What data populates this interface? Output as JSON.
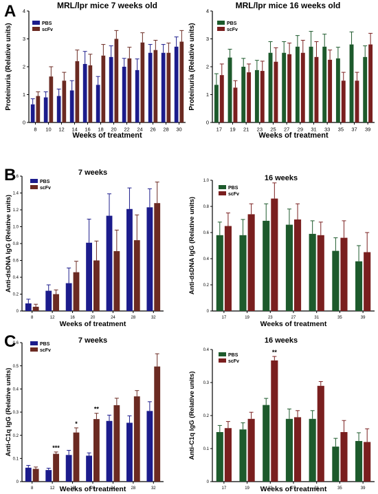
{
  "panels": [
    {
      "letter": "A"
    },
    {
      "letter": "B"
    },
    {
      "letter": "C"
    }
  ],
  "chart_data": [
    {
      "id": "A1",
      "type": "bar",
      "title": "MRL/lpr mice 7 weeks old",
      "xlabel": "Weeks of treatment",
      "ylabel": "Proteinuria (Relative units)",
      "ylim": [
        0,
        4
      ],
      "yticks": [
        "0",
        "1",
        "2",
        "3",
        "4"
      ],
      "yticks_values": [
        0,
        1,
        2,
        3,
        4
      ],
      "legend_position": "top-left",
      "categories": [
        "8",
        "10",
        "12",
        "14",
        "16",
        "18",
        "20",
        "22",
        "24",
        "26",
        "28",
        "30"
      ],
      "series": [
        {
          "name": "PBS",
          "color": "#1c1c8c",
          "values": [
            0.65,
            0.9,
            0.95,
            1.15,
            2.1,
            1.35,
            2.35,
            2.0,
            1.88,
            2.5,
            2.5,
            2.72
          ],
          "errors": [
            0.2,
            0.2,
            0.25,
            0.35,
            0.45,
            0.3,
            0.4,
            0.3,
            0.4,
            0.3,
            0.3,
            0.35
          ]
        },
        {
          "name": "scFv",
          "color": "#6b2a22",
          "values": [
            0.95,
            1.65,
            1.5,
            2.2,
            2.05,
            2.4,
            3.0,
            2.3,
            2.87,
            2.6,
            2.5,
            2.9
          ],
          "errors": [
            0.15,
            0.35,
            0.3,
            0.4,
            0.4,
            0.4,
            0.3,
            0.4,
            0.35,
            0.35,
            0.35,
            0.4
          ]
        }
      ],
      "annotations": []
    },
    {
      "id": "A2",
      "type": "bar",
      "title": "MRL/lpr mice 16 weeks old",
      "xlabel": "Weeks of treatment",
      "ylabel": "Proteinuria (Relative units)",
      "ylim": [
        0,
        4
      ],
      "yticks": [
        "0",
        "1",
        "2",
        "3",
        "4"
      ],
      "yticks_values": [
        0,
        1,
        2,
        3,
        4
      ],
      "legend_position": "top-left",
      "categories": [
        "17",
        "19",
        "21",
        "23",
        "25",
        "27",
        "29",
        "31",
        "33",
        "35",
        "37",
        "39"
      ],
      "series": [
        {
          "name": "PBS",
          "color": "#1d5a2c",
          "values": [
            1.35,
            2.33,
            2.0,
            1.88,
            2.5,
            2.5,
            2.72,
            2.72,
            2.72,
            2.3,
            2.8,
            2.35
          ],
          "errors": [
            0.4,
            0.3,
            0.3,
            0.35,
            0.4,
            0.4,
            0.4,
            0.55,
            0.45,
            0.4,
            0.45,
            0.4
          ]
        },
        {
          "name": "scFv",
          "color": "#7a1f1f",
          "values": [
            1.7,
            1.25,
            1.8,
            1.85,
            2.18,
            2.45,
            2.5,
            2.35,
            2.25,
            1.5,
            1.5,
            2.8
          ],
          "errors": [
            0.4,
            0.25,
            0.3,
            0.35,
            0.5,
            0.4,
            0.45,
            0.55,
            0.35,
            0.3,
            0.3,
            0.4
          ]
        }
      ],
      "annotations": []
    },
    {
      "id": "B1",
      "type": "bar",
      "title": "7 weeks",
      "xlabel": "Weeks of treatment",
      "ylabel": "Anti-dsDNA IgG (Relative units)",
      "ylim": [
        0,
        1.6
      ],
      "yticks": [
        "0",
        "0.2",
        "0.4",
        "0.6",
        "0.8",
        "1.0",
        "1.2",
        "1.4",
        "1.6"
      ],
      "yticks_values": [
        0,
        0.2,
        0.4,
        0.6,
        0.8,
        1.0,
        1.2,
        1.4,
        1.6
      ],
      "legend_position": "top-left",
      "categories": [
        "8",
        "12",
        "16",
        "20",
        "24",
        "28",
        "32"
      ],
      "series": [
        {
          "name": "PBS",
          "color": "#1c1c8c",
          "values": [
            0.09,
            0.24,
            0.33,
            0.81,
            1.13,
            1.21,
            1.23
          ],
          "errors": [
            0.05,
            0.07,
            0.18,
            0.28,
            0.26,
            0.25,
            0.22
          ]
        },
        {
          "name": "scFv",
          "color": "#6b2a22",
          "values": [
            0.05,
            0.2,
            0.46,
            0.6,
            0.71,
            0.84,
            1.28
          ],
          "errors": [
            0.03,
            0.05,
            0.13,
            0.23,
            0.25,
            0.3,
            0.25
          ]
        }
      ],
      "annotations": []
    },
    {
      "id": "B2",
      "type": "bar",
      "title": "16 weeks",
      "xlabel": "Weeks of treatment",
      "ylabel": "Anti-dsDNA IgG (Relative units)",
      "ylim": [
        0,
        1.0
      ],
      "yticks": [
        "0",
        "0.2",
        "0.4",
        "0.6",
        "0.8",
        "1.0"
      ],
      "yticks_values": [
        0,
        0.2,
        0.4,
        0.6,
        0.8,
        1.0
      ],
      "legend_position": "top-left",
      "categories": [
        "17",
        "19",
        "23",
        "27",
        "31",
        "35",
        "39"
      ],
      "series": [
        {
          "name": "PBS",
          "color": "#1d5a2c",
          "values": [
            0.58,
            0.58,
            0.69,
            0.66,
            0.59,
            0.46,
            0.38
          ],
          "errors": [
            0.1,
            0.12,
            0.13,
            0.12,
            0.1,
            0.1,
            0.12
          ]
        },
        {
          "name": "scFv",
          "color": "#7a1f1f",
          "values": [
            0.65,
            0.74,
            0.86,
            0.7,
            0.58,
            0.56,
            0.45
          ],
          "errors": [
            0.1,
            0.08,
            0.12,
            0.12,
            0.1,
            0.13,
            0.15
          ]
        }
      ],
      "annotations": []
    },
    {
      "id": "C1",
      "type": "bar",
      "title": "7 weeks",
      "xlabel": "Weeks of treatment",
      "ylabel": "Anti-C1q IgG (Relative units)",
      "ylim": [
        0,
        0.6
      ],
      "yticks": [
        "0",
        "0.1",
        "0.2",
        "0.3",
        "0.4",
        "0.5",
        "0.6"
      ],
      "yticks_values": [
        0,
        0.1,
        0.2,
        0.3,
        0.4,
        0.5,
        0.6
      ],
      "legend_position": "top-left",
      "categories": [
        "8",
        "12",
        "16",
        "20",
        "24",
        "28",
        "32"
      ],
      "series": [
        {
          "name": "PBS",
          "color": "#1c1c8c",
          "values": [
            0.06,
            0.05,
            0.115,
            0.112,
            0.262,
            0.254,
            0.305
          ],
          "errors": [
            0.01,
            0.008,
            0.02,
            0.012,
            0.025,
            0.03,
            0.04
          ]
        },
        {
          "name": "scFv",
          "color": "#6b2a22",
          "values": [
            0.055,
            0.12,
            0.212,
            0.27,
            0.33,
            0.368,
            0.497
          ],
          "errors": [
            0.008,
            0.008,
            0.02,
            0.025,
            0.03,
            0.025,
            0.055
          ]
        }
      ],
      "annotations": [
        {
          "text": "***",
          "category": "12",
          "series": "scFv"
        },
        {
          "text": "*",
          "category": "16",
          "series": "scFv"
        },
        {
          "text": "**",
          "category": "20",
          "series": "scFv"
        }
      ]
    },
    {
      "id": "C2",
      "type": "bar",
      "title": "16 weeks",
      "xlabel": "Weeks of treatment",
      "ylabel": "Anti-C1q IgG (Relative units)",
      "ylim": [
        0,
        0.4
      ],
      "yticks": [
        "0",
        "0.1",
        "0.2",
        "0.3",
        "0.4"
      ],
      "yticks_values": [
        0,
        0.1,
        0.2,
        0.3,
        0.4
      ],
      "legend_position": "top-left",
      "categories": [
        "17",
        "19",
        "23",
        "27",
        "31",
        "35",
        "39"
      ],
      "series": [
        {
          "name": "PBS",
          "color": "#1d5a2c",
          "values": [
            0.15,
            0.158,
            0.232,
            0.19,
            0.19,
            0.106,
            0.123
          ],
          "errors": [
            0.02,
            0.02,
            0.02,
            0.03,
            0.025,
            0.025,
            0.025
          ]
        },
        {
          "name": "scFv",
          "color": "#7a1f1f",
          "values": [
            0.162,
            0.19,
            0.367,
            0.195,
            0.29,
            0.15,
            0.12
          ],
          "errors": [
            0.02,
            0.02,
            0.012,
            0.02,
            0.013,
            0.035,
            0.04
          ]
        }
      ],
      "annotations": [
        {
          "text": "**",
          "category": "23",
          "series": "scFv"
        }
      ]
    }
  ]
}
